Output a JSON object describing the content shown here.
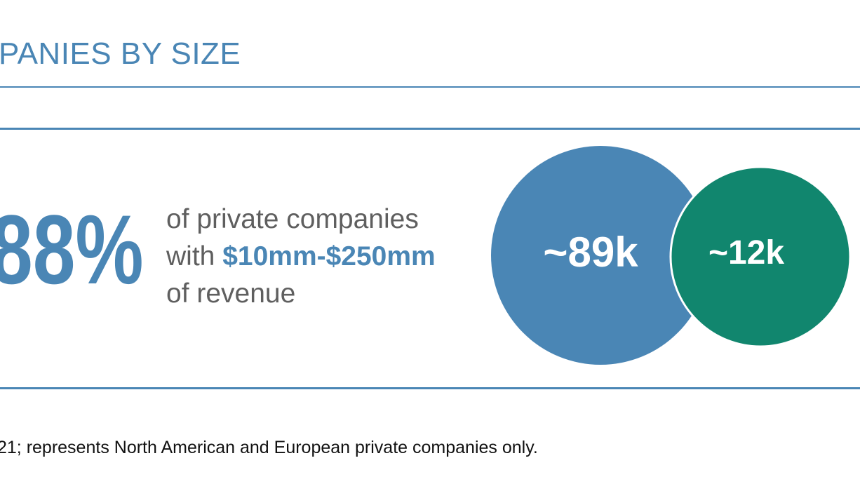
{
  "header": {
    "title": "PANIES BY SIZE"
  },
  "stat": {
    "percent": "88%",
    "line1": "of private companies",
    "line2_prefix": "with ",
    "line2_highlight": "$10mm-$250mm",
    "line3": "of revenue"
  },
  "chart_data": {
    "type": "bubble",
    "series": [
      {
        "label": "~89k",
        "value": 89000,
        "color": "#4a86b5"
      },
      {
        "label": "~12k",
        "value": 12000,
        "color": "#11866e"
      }
    ]
  },
  "footnote": "21; represents North American and European private companies only.",
  "colors": {
    "accent": "#4a86b5",
    "secondary": "#11866e",
    "body_text": "#5f5f5f"
  }
}
